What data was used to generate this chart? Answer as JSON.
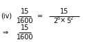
{
  "bg_color": "#ffffff",
  "text_color": "#000000",
  "line1_left": "(iv)",
  "frac1_num": "15",
  "frac1_den": "1600",
  "equals": "=",
  "frac2_num": "15",
  "frac2_den_base1": "2",
  "frac2_den_exp1": "6",
  "frac2_den_cross": "×",
  "frac2_den_base2": "5",
  "frac2_den_exp2": "2",
  "arrow": "⇒",
  "frac3_num": "15",
  "frac3_den": "1600",
  "figsize": [
    1.26,
    0.62
  ],
  "dpi": 100
}
